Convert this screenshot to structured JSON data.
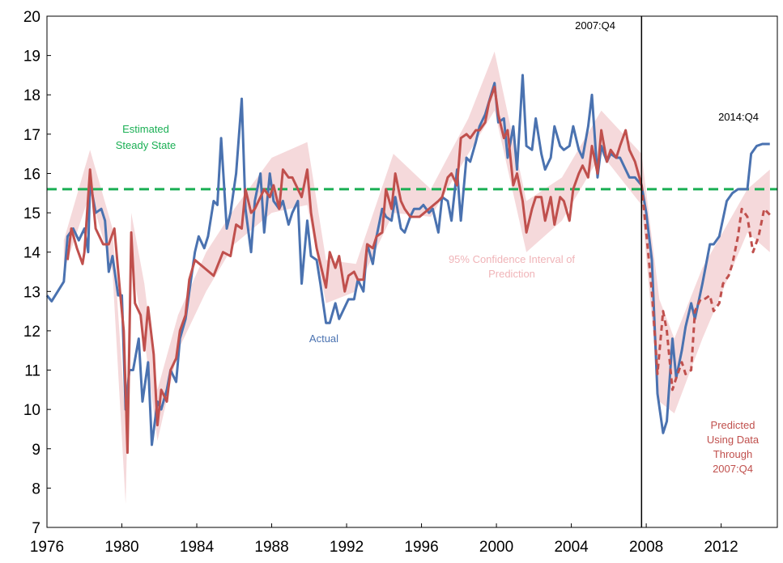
{
  "chart_data": {
    "type": "line",
    "xlim": [
      1976,
      2015
    ],
    "xticks": [
      1976,
      1980,
      1984,
      1988,
      1992,
      1996,
      2000,
      2004,
      2008,
      2012
    ],
    "ylim": [
      7,
      20
    ],
    "yticks": [
      7,
      8,
      9,
      10,
      11,
      12,
      13,
      14,
      15,
      16,
      17,
      18,
      19,
      20
    ],
    "steady_state": {
      "value": 15.6,
      "color": "#1aaf54",
      "label": [
        "Estimated",
        "Steady State"
      ]
    },
    "marker_line": {
      "value": 2007.75,
      "label": "2007:Q4"
    },
    "end_label": "2014:Q4",
    "band": {
      "color": "#f5d9db",
      "label": [
        "95% Confidence Interval of",
        "Prediction"
      ],
      "x": [
        1976.9,
        1978.3,
        1979.5,
        1980.2,
        1980.5,
        1981.2,
        1981.9,
        1983.0,
        1984.5,
        1986.0,
        1988.0,
        1989.9,
        1990.9,
        1992.5,
        1994.5,
        1996.5,
        1998.5,
        1999.9,
        2001.6,
        2003.5,
        2005.6,
        2007.75,
        2008.7,
        2009.5,
        2011.0,
        2013.4,
        2014.6
      ],
      "lower": [
        13.5,
        15.5,
        13.5,
        7.6,
        13.8,
        11.8,
        9.2,
        11.5,
        13.0,
        14.2,
        15.0,
        15.2,
        12.7,
        13.0,
        15.0,
        14.9,
        16.5,
        17.6,
        14.0,
        14.8,
        16.5,
        15.2,
        10.2,
        9.9,
        11.8,
        14.5,
        14.0
      ],
      "upper": [
        14.3,
        16.6,
        14.6,
        9.6,
        15.0,
        13.2,
        10.5,
        12.4,
        14.0,
        15.1,
        16.4,
        16.8,
        13.8,
        13.7,
        16.5,
        15.6,
        17.4,
        19.1,
        15.3,
        15.9,
        17.6,
        16.5,
        12.8,
        11.8,
        13.6,
        15.6,
        16.1
      ]
    },
    "series": [
      {
        "name": "Actual",
        "color": "#4a72b0",
        "x": [
          1976.0,
          1976.25,
          1976.9,
          1977.1,
          1977.4,
          1977.7,
          1978.0,
          1978.2,
          1978.3,
          1978.6,
          1978.9,
          1979.1,
          1979.3,
          1979.5,
          1979.8,
          1980.0,
          1980.2,
          1980.4,
          1980.6,
          1980.9,
          1981.1,
          1981.4,
          1981.6,
          1981.9,
          1982.1,
          1982.4,
          1982.6,
          1982.9,
          1983.1,
          1983.4,
          1983.6,
          1983.9,
          1984.1,
          1984.4,
          1984.6,
          1984.9,
          1985.1,
          1985.3,
          1985.6,
          1985.8,
          1986.1,
          1986.4,
          1986.6,
          1986.9,
          1987.1,
          1987.4,
          1987.6,
          1987.9,
          1988.1,
          1988.4,
          1988.6,
          1988.9,
          1989.1,
          1989.4,
          1989.6,
          1989.9,
          1990.1,
          1990.4,
          1990.6,
          1990.9,
          1991.1,
          1991.4,
          1991.6,
          1991.9,
          1992.1,
          1992.4,
          1992.6,
          1992.9,
          1993.1,
          1993.4,
          1993.6,
          1993.9,
          1994.1,
          1994.4,
          1994.6,
          1994.9,
          1995.1,
          1995.4,
          1995.6,
          1995.9,
          1996.1,
          1996.4,
          1996.6,
          1996.9,
          1997.1,
          1997.4,
          1997.6,
          1997.9,
          1998.1,
          1998.4,
          1998.6,
          1998.9,
          1999.1,
          1999.4,
          1999.9,
          2000.1,
          2000.4,
          2000.6,
          2000.9,
          2001.1,
          2001.4,
          2001.6,
          2001.9,
          2002.1,
          2002.4,
          2002.6,
          2002.9,
          2003.1,
          2003.4,
          2003.6,
          2003.9,
          2004.1,
          2004.4,
          2004.6,
          2004.9,
          2005.1,
          2005.4,
          2005.6,
          2005.9,
          2006.1,
          2006.4,
          2006.6,
          2006.9,
          2007.1,
          2007.4,
          2007.75,
          2008.0,
          2008.3,
          2008.6,
          2008.9,
          2009.1,
          2009.4,
          2009.6,
          2009.9,
          2010.1,
          2010.4,
          2010.6,
          2011.0,
          2011.4,
          2011.6,
          2011.9,
          2012.3,
          2012.6,
          2012.9,
          2013.4,
          2013.6,
          2013.9,
          2014.2,
          2014.6
        ],
        "values": [
          12.9,
          12.75,
          13.25,
          14.4,
          14.6,
          14.3,
          14.6,
          14.0,
          15.8,
          15.0,
          15.1,
          14.8,
          13.5,
          13.9,
          12.9,
          12.9,
          10.0,
          11.0,
          11.0,
          11.8,
          10.2,
          11.2,
          9.1,
          10.2,
          10.0,
          10.5,
          11.0,
          10.7,
          11.8,
          12.3,
          13.0,
          14.0,
          14.4,
          14.1,
          14.4,
          15.3,
          15.2,
          16.9,
          14.6,
          15.0,
          16.0,
          17.9,
          15.1,
          14.0,
          15.3,
          16.0,
          14.5,
          16.0,
          15.3,
          15.1,
          15.3,
          14.7,
          15.0,
          15.3,
          13.2,
          14.8,
          13.9,
          13.8,
          13.2,
          12.2,
          12.2,
          12.7,
          12.3,
          12.6,
          12.8,
          12.8,
          13.3,
          13.0,
          14.2,
          13.7,
          14.4,
          15.1,
          14.9,
          14.8,
          15.4,
          14.6,
          14.5,
          14.9,
          15.1,
          15.1,
          15.2,
          15.0,
          15.1,
          14.5,
          15.4,
          15.3,
          14.8,
          16.1,
          14.8,
          16.4,
          16.3,
          16.8,
          17.2,
          17.5,
          18.3,
          17.3,
          17.4,
          16.4,
          17.2,
          16.1,
          18.5,
          16.7,
          16.6,
          17.4,
          16.5,
          16.1,
          16.4,
          17.2,
          16.7,
          16.6,
          16.7,
          17.2,
          16.6,
          16.4,
          17.2,
          18.0,
          15.9,
          16.7,
          16.3,
          16.5,
          16.4,
          16.4,
          16.1,
          15.9,
          15.9,
          15.7,
          15.0,
          13.8,
          10.4,
          9.4,
          9.7,
          11.8,
          10.8,
          11.5,
          12.1,
          12.7,
          12.3,
          13.2,
          14.2,
          14.2,
          14.4,
          15.3,
          15.5,
          15.6,
          15.6,
          16.5,
          16.7,
          16.75,
          16.75
        ]
      },
      {
        "color": "#c0504d",
        "dash": false,
        "x": [
          1977.1,
          1977.3,
          1977.6,
          1977.9,
          1978.0,
          1978.3,
          1978.6,
          1979.0,
          1979.3,
          1979.6,
          1979.9,
          1980.1,
          1980.3,
          1980.5,
          1980.7,
          1981.0,
          1981.2,
          1981.4,
          1981.7,
          1981.9,
          1982.1,
          1982.4,
          1982.6,
          1982.9,
          1983.1,
          1983.4,
          1983.6,
          1983.9,
          1984.4,
          1984.9,
          1985.4,
          1985.8,
          1986.1,
          1986.4,
          1986.6,
          1986.9,
          1987.1,
          1987.4,
          1987.6,
          1987.9,
          1988.1,
          1988.4,
          1988.6,
          1988.9,
          1989.1,
          1989.4,
          1989.6,
          1989.9,
          1990.1,
          1990.4,
          1990.6,
          1990.9,
          1991.1,
          1991.4,
          1991.6,
          1991.9,
          1992.1,
          1992.4,
          1992.6,
          1992.9,
          1993.1,
          1993.4,
          1993.6,
          1993.9,
          1994.1,
          1994.4,
          1994.6,
          1994.9,
          1995.1,
          1995.4,
          1995.9,
          1996.4,
          1996.9,
          1997.1,
          1997.4,
          1997.6,
          1997.9,
          1998.1,
          1998.4,
          1998.6,
          1998.9,
          1999.1,
          1999.4,
          1999.6,
          1999.9,
          2000.1,
          2000.4,
          2000.6,
          2000.9,
          2001.1,
          2001.4,
          2001.6,
          2001.9,
          2002.1,
          2002.4,
          2002.6,
          2002.9,
          2003.1,
          2003.4,
          2003.6,
          2003.9,
          2004.1,
          2004.4,
          2004.6,
          2004.9,
          2005.1,
          2005.4,
          2005.6,
          2005.9,
          2006.1,
          2006.4,
          2006.6,
          2006.9,
          2007.1,
          2007.4,
          2007.75
        ],
        "values": [
          13.8,
          14.6,
          14.1,
          13.7,
          14.0,
          16.1,
          14.6,
          14.2,
          14.2,
          14.6,
          13.0,
          12.0,
          8.9,
          14.5,
          12.7,
          12.4,
          11.5,
          12.6,
          11.4,
          9.6,
          10.5,
          10.2,
          11.0,
          11.3,
          12.0,
          12.4,
          13.3,
          13.8,
          13.6,
          13.4,
          14.0,
          13.9,
          14.7,
          14.6,
          15.6,
          15.0,
          15.1,
          15.4,
          15.6,
          15.4,
          15.7,
          15.1,
          16.1,
          15.9,
          15.9,
          15.6,
          15.4,
          16.1,
          15.0,
          14.1,
          13.7,
          13.1,
          14.0,
          13.6,
          13.9,
          13.0,
          13.4,
          13.5,
          13.3,
          13.3,
          14.2,
          14.1,
          14.4,
          14.5,
          15.6,
          15.1,
          16.0,
          15.3,
          15.1,
          14.9,
          14.9,
          15.1,
          15.3,
          15.4,
          15.9,
          16.0,
          15.7,
          16.9,
          17.0,
          16.9,
          17.1,
          17.1,
          17.3,
          17.8,
          18.2,
          17.5,
          16.9,
          17.1,
          15.7,
          16.0,
          15.3,
          14.5,
          15.1,
          15.4,
          15.4,
          14.8,
          15.4,
          14.7,
          15.4,
          15.3,
          14.8,
          15.6,
          16.0,
          16.2,
          15.9,
          16.7,
          16.0,
          17.1,
          16.3,
          16.6,
          16.4,
          16.7,
          17.1,
          16.6,
          16.3,
          15.7
        ]
      },
      {
        "color": "#c0504d",
        "dash": true,
        "x": [
          2007.75,
          2008.0,
          2008.3,
          2008.6,
          2008.9,
          2009.1,
          2009.4,
          2009.6,
          2009.9,
          2010.1,
          2010.4,
          2010.6,
          2010.9,
          2011.1,
          2011.4,
          2011.6,
          2011.9,
          2012.1,
          2012.4,
          2012.6,
          2012.9,
          2013.1,
          2013.4,
          2013.7,
          2014.0,
          2014.3,
          2014.6
        ],
        "values": [
          15.7,
          14.5,
          13.0,
          10.9,
          12.5,
          12.0,
          10.5,
          10.8,
          11.2,
          10.9,
          11.0,
          12.5,
          12.8,
          12.8,
          12.9,
          12.5,
          12.7,
          13.2,
          13.4,
          13.7,
          14.4,
          15.1,
          14.9,
          14.0,
          14.4,
          15.1,
          14.95
        ]
      }
    ],
    "prediction_label": [
      "Predicted",
      "Using Data",
      "Through",
      "2007:Q4"
    ]
  }
}
